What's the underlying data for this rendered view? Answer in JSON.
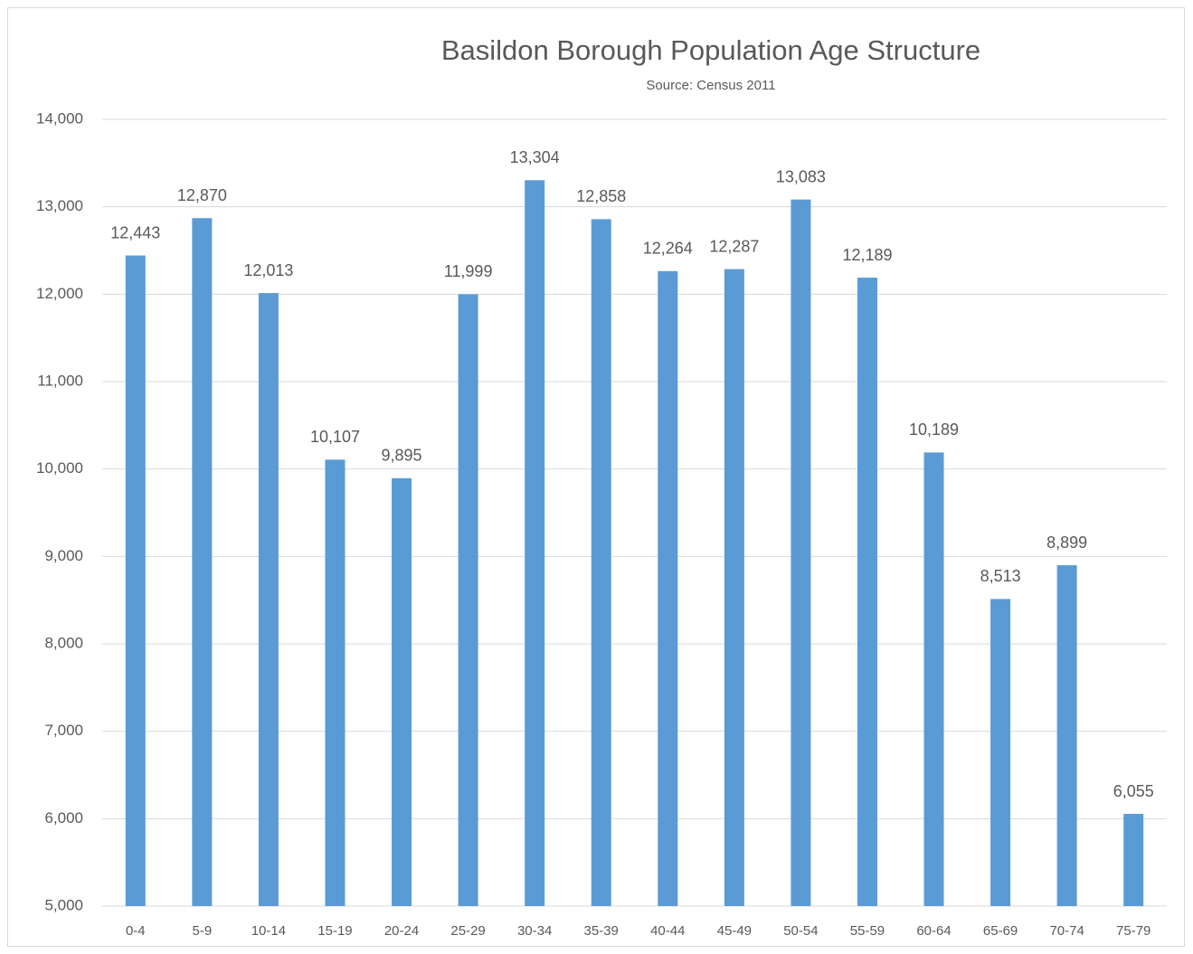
{
  "chart_data": {
    "type": "bar",
    "title": "Basildon Borough Population Age Structure",
    "subtitle": "Source: Census 2011",
    "categories": [
      "0-4",
      "5-9",
      "10-14",
      "15-19",
      "20-24",
      "25-29",
      "30-34",
      "35-39",
      "40-44",
      "45-49",
      "50-54",
      "55-59",
      "60-64",
      "65-69",
      "70-74",
      "75-79"
    ],
    "values": [
      12443,
      12870,
      12013,
      10107,
      9895,
      11999,
      13304,
      12858,
      12264,
      12287,
      13083,
      12189,
      10189,
      8513,
      8899,
      6055
    ],
    "value_labels": [
      "12,443",
      "12,870",
      "12,013",
      "10,107",
      "9,895",
      "11,999",
      "13,304",
      "12,858",
      "12,264",
      "12,287",
      "13,083",
      "12,189",
      "10,189",
      "8,513",
      "8,899",
      "6,055"
    ],
    "color": "#5b9bd5",
    "ylim": [
      5000,
      14000
    ],
    "yticks": [
      {
        "value": 5000,
        "label": "5,000"
      },
      {
        "value": 6000,
        "label": "6,000"
      },
      {
        "value": 7000,
        "label": "7,000"
      },
      {
        "value": 8000,
        "label": "8,000"
      },
      {
        "value": 9000,
        "label": "9,000"
      },
      {
        "value": 10000,
        "label": "10,000"
      },
      {
        "value": 11000,
        "label": "11,000"
      },
      {
        "value": 12000,
        "label": "12,000"
      },
      {
        "value": 13000,
        "label": "13,000"
      },
      {
        "value": 14000,
        "label": "14,000"
      }
    ],
    "grid": true
  }
}
